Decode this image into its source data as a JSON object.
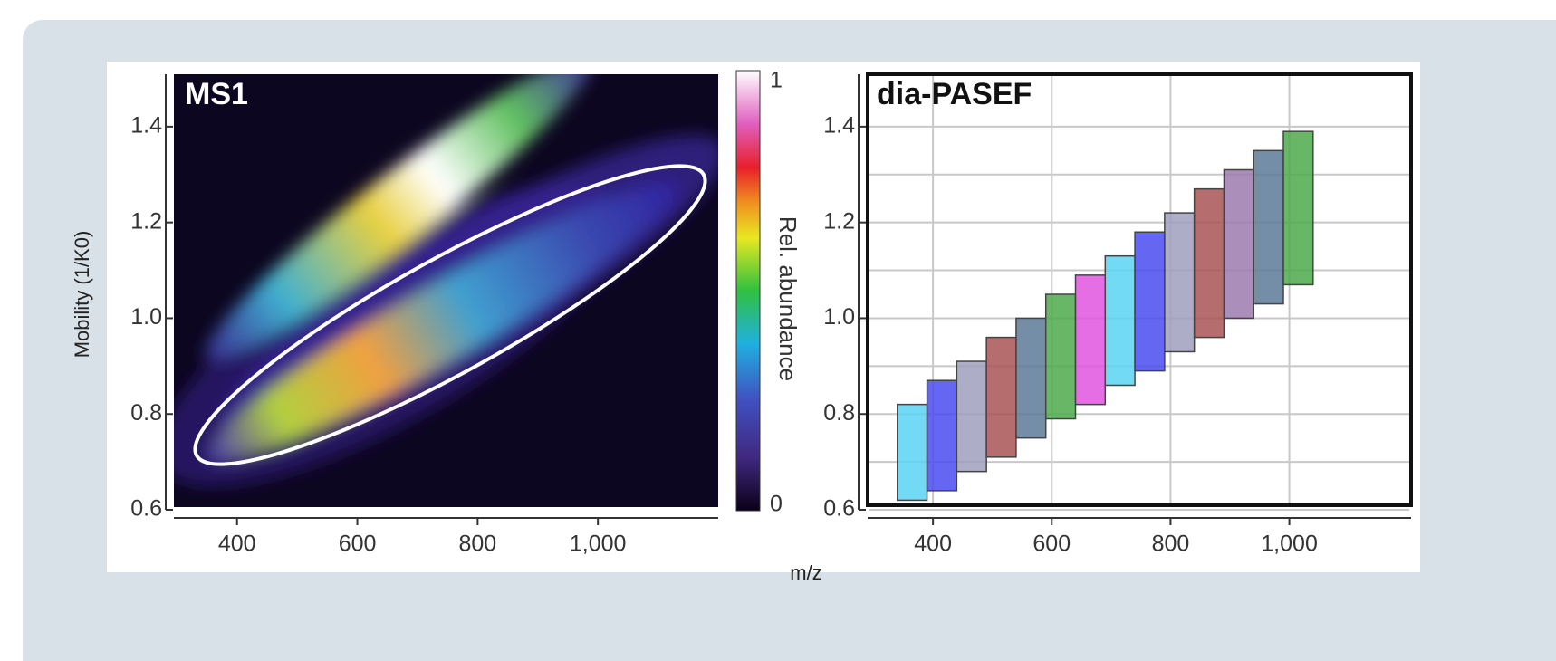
{
  "chart_data": [
    {
      "type": "heatmap",
      "title": "MS1",
      "y_label": "Mobility (1/K0)",
      "x_label": "m/z",
      "xlim": [
        295,
        1200
      ],
      "xticks": [
        400,
        600,
        800,
        {
          "value": 1000,
          "label": "1,000"
        }
      ],
      "ylim": [
        0.6,
        1.5
      ],
      "yticks": [
        0.6,
        0.8,
        {
          "value": 1,
          "label": "1.0"
        },
        1.2,
        1.4
      ],
      "colorbar": {
        "label": "Rel. abundance",
        "ticks": [
          0,
          1
        ]
      }
    },
    {
      "type": "windows",
      "title": "dia-PASEF",
      "xlim": [
        290,
        1205
      ],
      "xticks": [
        400,
        600,
        800,
        {
          "value": 1000,
          "label": "1,000"
        }
      ],
      "ylim": [
        0.6,
        1.5
      ],
      "yticks": [
        0.6,
        0.8,
        {
          "value": 1,
          "label": "1.0"
        },
        1.2,
        1.4
      ],
      "minor_yticks": [
        0.7,
        0.9,
        1.1,
        1.3
      ],
      "grid": true,
      "x_start": [
        340,
        390,
        440,
        490,
        540,
        590,
        640,
        690,
        740,
        790,
        840,
        890,
        940,
        990
      ],
      "x_end": [
        390,
        440,
        490,
        540,
        590,
        640,
        690,
        740,
        790,
        840,
        890,
        940,
        990,
        1040
      ],
      "y_low": [
        0.62,
        0.64,
        0.68,
        0.71,
        0.75,
        0.79,
        0.82,
        0.86,
        0.89,
        0.93,
        0.96,
        1.0,
        1.03,
        1.07
      ],
      "y_high": [
        0.82,
        0.87,
        0.91,
        0.96,
        1.0,
        1.05,
        1.09,
        1.13,
        1.18,
        1.22,
        1.27,
        1.31,
        1.35,
        1.39
      ],
      "colors": [
        "#5bd3f5",
        "#4a4cf0",
        "#a09fbd",
        "#a85454",
        "#5d7a99",
        "#4caa4c",
        "#e055e0",
        "#5bd3f5",
        "#4a4cf0",
        "#a09fbd",
        "#a85454",
        "#9c7aae",
        "#5d7a99",
        "#4caa4c"
      ]
    }
  ]
}
